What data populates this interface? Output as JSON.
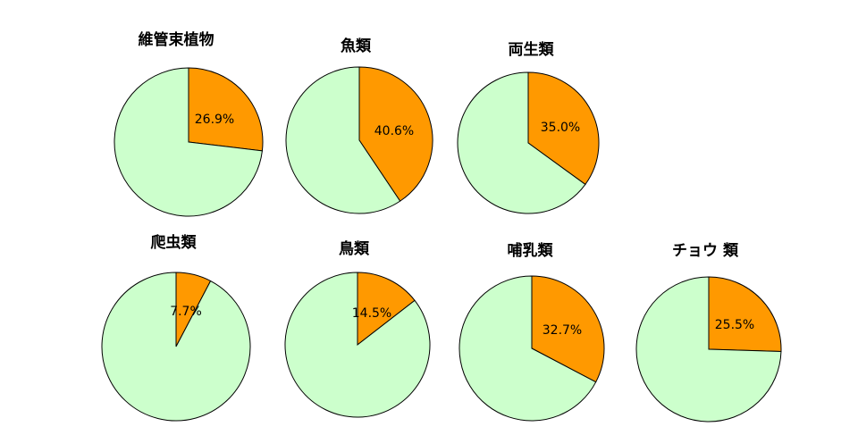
{
  "colors": {
    "highlight": "#FF9900",
    "remainder": "#CCFFCC",
    "outline": "#000000",
    "text": "#000000"
  },
  "chart_data": [
    {
      "type": "pie",
      "title": "維管束植物",
      "slices": [
        {
          "value": 26.9,
          "label": "26.9%",
          "color": "#FF9900"
        },
        {
          "value": 73.1,
          "label": "",
          "color": "#CCFFCC"
        }
      ]
    },
    {
      "type": "pie",
      "title": "魚類",
      "slices": [
        {
          "value": 40.6,
          "label": "40.6%",
          "color": "#FF9900"
        },
        {
          "value": 59.4,
          "label": "",
          "color": "#CCFFCC"
        }
      ]
    },
    {
      "type": "pie",
      "title": "両生類",
      "slices": [
        {
          "value": 35.0,
          "label": "35.0%",
          "color": "#FF9900"
        },
        {
          "value": 65.0,
          "label": "",
          "color": "#CCFFCC"
        }
      ]
    },
    {
      "type": "pie",
      "title": "爬虫類",
      "slices": [
        {
          "value": 7.7,
          "label": "7.7%",
          "color": "#FF9900"
        },
        {
          "value": 92.3,
          "label": "",
          "color": "#CCFFCC"
        }
      ]
    },
    {
      "type": "pie",
      "title": "鳥類",
      "slices": [
        {
          "value": 14.5,
          "label": "14.5%",
          "color": "#FF9900"
        },
        {
          "value": 85.5,
          "label": "",
          "color": "#CCFFCC"
        }
      ]
    },
    {
      "type": "pie",
      "title": "哺乳類",
      "slices": [
        {
          "value": 32.7,
          "label": "32.7%",
          "color": "#FF9900"
        },
        {
          "value": 67.3,
          "label": "",
          "color": "#CCFFCC"
        }
      ]
    },
    {
      "type": "pie",
      "title": "チョウ 類",
      "slices": [
        {
          "value": 25.5,
          "label": "25.5%",
          "color": "#FF9900"
        },
        {
          "value": 74.5,
          "label": "",
          "color": "#CCFFCC"
        }
      ]
    }
  ]
}
